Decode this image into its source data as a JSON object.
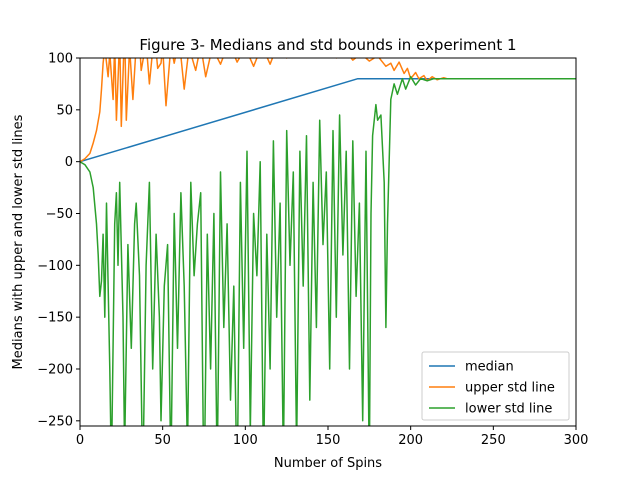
{
  "chart_data": {
    "type": "line",
    "title": "Figure 3- Medians and std bounds in experiment 1",
    "xlabel": "Number of Spins",
    "ylabel": "Medians with upper and lower std lines",
    "xlim": [
      0,
      300
    ],
    "ylim": [
      -255,
      100
    ],
    "xticks": [
      0,
      50,
      100,
      150,
      200,
      250,
      300
    ],
    "yticks": [
      -250,
      -200,
      -150,
      -100,
      -50,
      0,
      50,
      100
    ],
    "grid": false,
    "legend_position": "lower-right",
    "series": [
      {
        "name": "median",
        "color": "#1f77b4",
        "points": [
          [
            0,
            0
          ],
          [
            168,
            80
          ],
          [
            300,
            80
          ]
        ]
      },
      {
        "name": "upper std line",
        "color": "#ff7f0e",
        "points": [
          [
            0,
            0
          ],
          [
            3,
            3
          ],
          [
            6,
            8
          ],
          [
            8,
            18
          ],
          [
            10,
            30
          ],
          [
            12,
            48
          ],
          [
            13,
            70
          ],
          [
            14,
            95
          ],
          [
            15,
            110
          ],
          [
            17,
            82
          ],
          [
            18,
            105
          ],
          [
            20,
            60
          ],
          [
            21,
            115
          ],
          [
            22,
            40
          ],
          [
            24,
            120
          ],
          [
            25,
            34
          ],
          [
            27,
            130
          ],
          [
            28,
            40
          ],
          [
            30,
            110
          ],
          [
            32,
            60
          ],
          [
            35,
            140
          ],
          [
            37,
            88
          ],
          [
            40,
            115
          ],
          [
            42,
            75
          ],
          [
            45,
            125
          ],
          [
            47,
            90
          ],
          [
            49,
            95
          ],
          [
            50,
            110
          ],
          [
            52,
            54
          ],
          [
            55,
            112
          ],
          [
            57,
            95
          ],
          [
            60,
            118
          ],
          [
            63,
            70
          ],
          [
            66,
            110
          ],
          [
            70,
            88
          ],
          [
            73,
            112
          ],
          [
            76,
            82
          ],
          [
            80,
            110
          ],
          [
            85,
            94
          ],
          [
            90,
            115
          ],
          [
            95,
            96
          ],
          [
            100,
            110
          ],
          [
            105,
            92
          ],
          [
            110,
            112
          ],
          [
            115,
            94
          ],
          [
            120,
            115
          ],
          [
            125,
            100
          ],
          [
            130,
            112
          ],
          [
            135,
            104
          ],
          [
            140,
            114
          ],
          [
            145,
            102
          ],
          [
            150,
            112
          ],
          [
            155,
            100
          ],
          [
            160,
            108
          ],
          [
            165,
            98
          ],
          [
            170,
            104
          ],
          [
            175,
            97
          ],
          [
            180,
            102
          ],
          [
            185,
            92
          ],
          [
            188,
            95
          ],
          [
            190,
            88
          ],
          [
            193,
            96
          ],
          [
            196,
            85
          ],
          [
            198,
            90
          ],
          [
            200,
            80
          ],
          [
            203,
            86
          ],
          [
            205,
            80
          ],
          [
            208,
            83
          ],
          [
            210,
            78
          ],
          [
            213,
            82
          ],
          [
            216,
            79
          ],
          [
            220,
            81
          ],
          [
            222,
            80
          ]
        ]
      },
      {
        "name": "lower std line",
        "color": "#2ca02c",
        "points": [
          [
            0,
            0
          ],
          [
            3,
            -3
          ],
          [
            6,
            -10
          ],
          [
            8,
            -25
          ],
          [
            10,
            -60
          ],
          [
            11,
            -90
          ],
          [
            12,
            -130
          ],
          [
            13,
            -115
          ],
          [
            14,
            -70
          ],
          [
            15,
            -150
          ],
          [
            16,
            -40
          ],
          [
            18,
            -200
          ],
          [
            19,
            -300
          ],
          [
            21,
            -60
          ],
          [
            22,
            -30
          ],
          [
            23,
            -100
          ],
          [
            24,
            -20
          ],
          [
            26,
            -150
          ],
          [
            27,
            -280
          ],
          [
            29,
            -80
          ],
          [
            31,
            -180
          ],
          [
            33,
            -60
          ],
          [
            34,
            -40
          ],
          [
            36,
            -110
          ],
          [
            38,
            -310
          ],
          [
            40,
            -100
          ],
          [
            42,
            -20
          ],
          [
            44,
            -200
          ],
          [
            46,
            -70
          ],
          [
            48,
            -150
          ],
          [
            49,
            -250
          ],
          [
            51,
            -120
          ],
          [
            53,
            -80
          ],
          [
            55,
            -300
          ],
          [
            57,
            -50
          ],
          [
            59,
            -180
          ],
          [
            61,
            -30
          ],
          [
            63,
            -120
          ],
          [
            65,
            -280
          ],
          [
            67,
            -20
          ],
          [
            69,
            -110
          ],
          [
            71,
            -60
          ],
          [
            73,
            -30
          ],
          [
            75,
            -330
          ],
          [
            77,
            -70
          ],
          [
            79,
            -200
          ],
          [
            81,
            -50
          ],
          [
            83,
            -300
          ],
          [
            85,
            -10
          ],
          [
            87,
            -160
          ],
          [
            89,
            -60
          ],
          [
            91,
            -230
          ],
          [
            93,
            -120
          ],
          [
            95,
            -320
          ],
          [
            97,
            -20
          ],
          [
            99,
            -180
          ],
          [
            101,
            10
          ],
          [
            103,
            -260
          ],
          [
            105,
            -50
          ],
          [
            107,
            -110
          ],
          [
            109,
            0
          ],
          [
            111,
            -300
          ],
          [
            113,
            -70
          ],
          [
            115,
            -200
          ],
          [
            117,
            20
          ],
          [
            119,
            -150
          ],
          [
            121,
            -40
          ],
          [
            123,
            -290
          ],
          [
            125,
            30
          ],
          [
            127,
            -100
          ],
          [
            129,
            -10
          ],
          [
            131,
            -280
          ],
          [
            133,
            10
          ],
          [
            135,
            -120
          ],
          [
            137,
            25
          ],
          [
            139,
            -230
          ],
          [
            141,
            -20
          ],
          [
            143,
            -160
          ],
          [
            145,
            40
          ],
          [
            147,
            -80
          ],
          [
            149,
            -10
          ],
          [
            151,
            -200
          ],
          [
            153,
            30
          ],
          [
            155,
            -150
          ],
          [
            157,
            45
          ],
          [
            159,
            -90
          ],
          [
            161,
            10
          ],
          [
            163,
            -200
          ],
          [
            165,
            20
          ],
          [
            167,
            -130
          ],
          [
            169,
            -40
          ],
          [
            171,
            -250
          ],
          [
            173,
            10
          ],
          [
            175,
            -300
          ],
          [
            176,
            -50
          ],
          [
            177,
            25
          ],
          [
            179,
            55
          ],
          [
            180,
            40
          ],
          [
            182,
            45
          ],
          [
            184,
            -20
          ],
          [
            185,
            -160
          ],
          [
            186,
            -60
          ],
          [
            188,
            60
          ],
          [
            190,
            75
          ],
          [
            192,
            65
          ],
          [
            195,
            80
          ],
          [
            197,
            70
          ],
          [
            200,
            82
          ],
          [
            203,
            74
          ],
          [
            206,
            80
          ],
          [
            210,
            78
          ],
          [
            214,
            80
          ],
          [
            300,
            80
          ]
        ]
      }
    ]
  }
}
